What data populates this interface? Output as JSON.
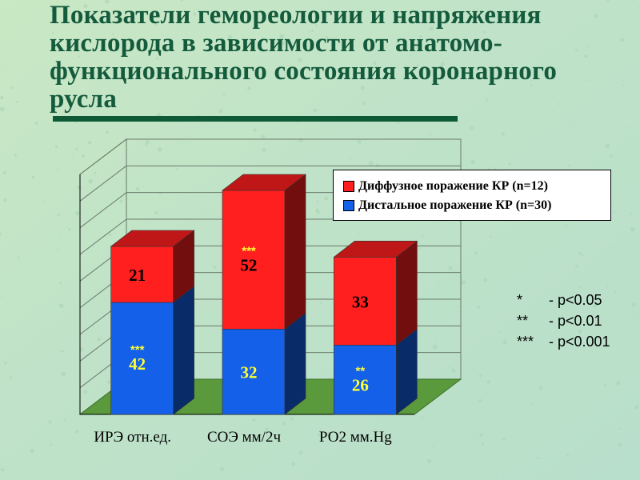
{
  "title": "Показатели гемореологии и напряжения кислорода в зависимости от анатомо-функционального состояния коронарного русла",
  "colors": {
    "diffuse": "#ff1f1f",
    "distal": "#1560e8",
    "title": "#145a3c",
    "floor": "#5a9a3c"
  },
  "chart_data": {
    "type": "bar",
    "stacked": true,
    "three_d": true,
    "categories": [
      "ИРЭ отн.ед.",
      "СОЭ мм/2ч",
      "РО2 мм.Hg"
    ],
    "series": [
      {
        "name": "Дистальное поражение КР (n=30)",
        "values": [
          42,
          32,
          26
        ],
        "markers": [
          "***",
          "",
          "**"
        ]
      },
      {
        "name": "Диффузное поражение КР (n=12)",
        "values": [
          21,
          52,
          33
        ],
        "markers": [
          "",
          "***",
          ""
        ]
      }
    ],
    "ylim": [
      0,
      90
    ],
    "grid": true,
    "legend_position": "top-right"
  },
  "significance": [
    {
      "symbol": "*",
      "text": "- p<0.05"
    },
    {
      "symbol": "**",
      "text": "- p<0.01"
    },
    {
      "symbol": "***",
      "text": "- p<0.001"
    }
  ]
}
